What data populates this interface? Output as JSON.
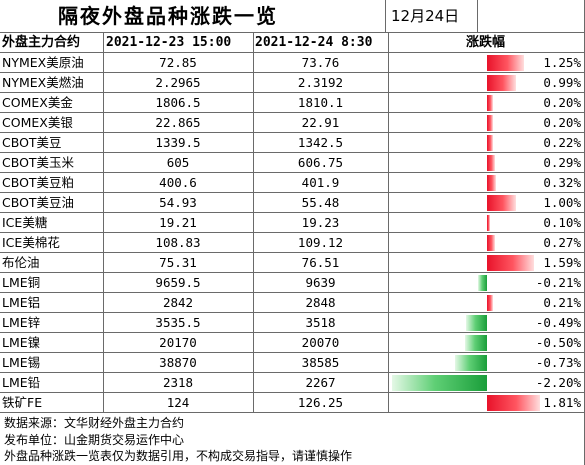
{
  "title": "隔夜外盘品种涨跌一览",
  "date": "12月24日",
  "headers": {
    "contract": "外盘主力合约",
    "prev": "2021-12-23 15:00",
    "curr": "2021-12-24 8:30",
    "change": "涨跌幅"
  },
  "rows": [
    {
      "name": "NYMEX美原油",
      "prev": "72.85",
      "curr": "73.76",
      "change": "1.25%",
      "change_value": 1.25
    },
    {
      "name": "NYMEX美燃油",
      "prev": "2.2965",
      "curr": "2.3192",
      "change": "0.99%",
      "change_value": 0.99
    },
    {
      "name": "COMEX美金",
      "prev": "1806.5",
      "curr": "1810.1",
      "change": "0.20%",
      "change_value": 0.2
    },
    {
      "name": "COMEX美银",
      "prev": "22.865",
      "curr": "22.91",
      "change": "0.20%",
      "change_value": 0.2
    },
    {
      "name": "CBOT美豆",
      "prev": "1339.5",
      "curr": "1342.5",
      "change": "0.22%",
      "change_value": 0.22
    },
    {
      "name": "CBOT美玉米",
      "prev": "605",
      "curr": "606.75",
      "change": "0.29%",
      "change_value": 0.29
    },
    {
      "name": "CBOT美豆粕",
      "prev": "400.6",
      "curr": "401.9",
      "change": "0.32%",
      "change_value": 0.32
    },
    {
      "name": "CBOT美豆油",
      "prev": "54.93",
      "curr": "55.48",
      "change": "1.00%",
      "change_value": 1.0
    },
    {
      "name": "ICE美糖",
      "prev": "19.21",
      "curr": "19.23",
      "change": "0.10%",
      "change_value": 0.1
    },
    {
      "name": "ICE美棉花",
      "prev": "108.83",
      "curr": "109.12",
      "change": "0.27%",
      "change_value": 0.27
    },
    {
      "name": "布伦油",
      "prev": "75.31",
      "curr": "76.51",
      "change": "1.59%",
      "change_value": 1.59
    },
    {
      "name": "LME铜",
      "prev": "9659.5",
      "curr": "9639",
      "change": "-0.21%",
      "change_value": -0.21
    },
    {
      "name": "LME铝",
      "prev": "2842",
      "curr": "2848",
      "change": "0.21%",
      "change_value": 0.21
    },
    {
      "name": "LME锌",
      "prev": "3535.5",
      "curr": "3518",
      "change": "-0.49%",
      "change_value": -0.49
    },
    {
      "name": "LME镍",
      "prev": "20170",
      "curr": "20070",
      "change": "-0.50%",
      "change_value": -0.5
    },
    {
      "name": "LME锡",
      "prev": "38870",
      "curr": "38585",
      "change": "-0.73%",
      "change_value": -0.73
    },
    {
      "name": "LME铅",
      "prev": "2318",
      "curr": "2267",
      "change": "-2.20%",
      "change_value": -2.2
    },
    {
      "name": "铁矿FE",
      "prev": "124",
      "curr": "126.25",
      "change": "1.81%",
      "change_value": 1.81
    }
  ],
  "footer": [
    "数据来源：文华财经外盘主力合约",
    "发布单位：山金期货交易运作中心",
    "外盘品种涨跌一览表仅为数据引用，不构成交易指导，请谨慎操作"
  ],
  "colors": {
    "up": "#e8122a",
    "down": "#1a9e3a",
    "grid": "#6a6a6a"
  }
}
